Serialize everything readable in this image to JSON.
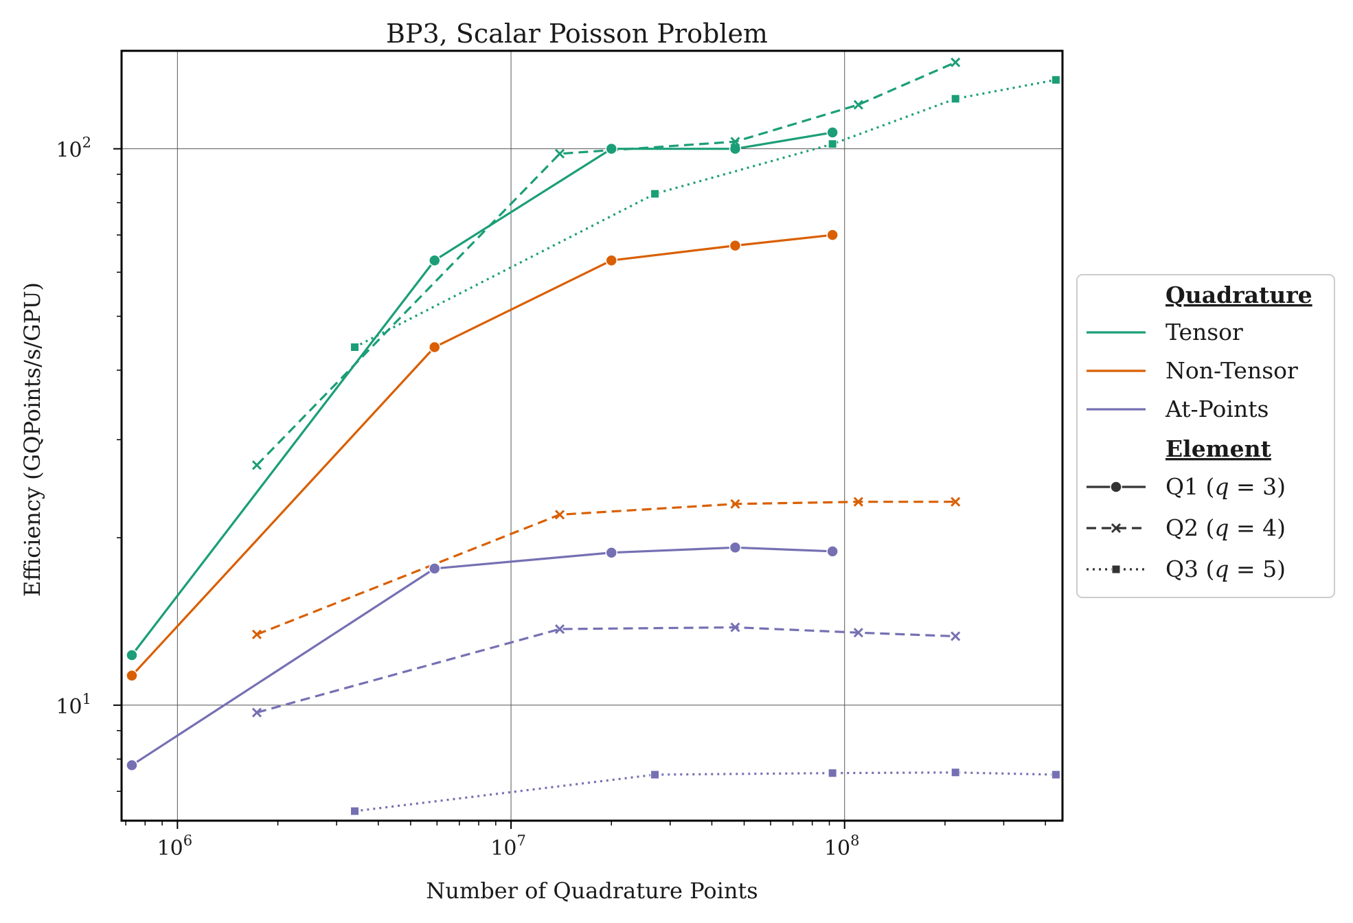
{
  "chart_data": {
    "type": "line",
    "title": "BP3, Scalar Poisson Problem",
    "xlabel": "Number of Quadrature Points",
    "ylabel": "Efficiency (GQPoints/s/GPU)",
    "xscale": "log",
    "yscale": "log",
    "xlim": [
      680000,
      450000000
    ],
    "ylim": [
      6.2,
      150
    ],
    "x_ticks": [
      {
        "value": 1000000,
        "base": "10",
        "exp": "6"
      },
      {
        "value": 10000000,
        "base": "10",
        "exp": "7"
      },
      {
        "value": 100000000,
        "base": "10",
        "exp": "8"
      }
    ],
    "y_ticks": [
      {
        "value": 10,
        "base": "10",
        "exp": "1"
      },
      {
        "value": 100,
        "base": "10",
        "exp": "2"
      }
    ],
    "grid": true,
    "legend_position": "outside-right",
    "legend": {
      "quadrature_title": "Quadrature",
      "quadrature": [
        {
          "label": "Tensor",
          "color": "#1b9e77"
        },
        {
          "label": "Non-Tensor",
          "color": "#d95f02"
        },
        {
          "label": "At-Points",
          "color": "#7570b3"
        }
      ],
      "element_title": "Element",
      "element": [
        {
          "label": "Q1 (",
          "var": "q",
          "eq": " = 3)",
          "dash": "solid",
          "marker": "circle"
        },
        {
          "label": "Q2 (",
          "var": "q",
          "eq": " = 4)",
          "dash": "dashed",
          "marker": "x"
        },
        {
          "label": "Q3 (",
          "var": "q",
          "eq": " = 5)",
          "dash": "dotted",
          "marker": "square"
        }
      ]
    },
    "series": [
      {
        "quadrature": "Tensor",
        "element": "Q1",
        "color": "#1b9e77",
        "dash": "solid",
        "marker": "circle",
        "x": [
          730000,
          5900000,
          20000000,
          47000000,
          92000000
        ],
        "y": [
          12.3,
          63,
          100,
          100,
          107
        ]
      },
      {
        "quadrature": "Tensor",
        "element": "Q2",
        "color": "#1b9e77",
        "dash": "dashed",
        "marker": "x",
        "x": [
          1730000,
          14000000,
          47000000,
          110000000,
          215000000
        ],
        "y": [
          27,
          98,
          103,
          120,
          143
        ]
      },
      {
        "quadrature": "Tensor",
        "element": "Q3",
        "color": "#1b9e77",
        "dash": "dotted",
        "marker": "square",
        "x": [
          3400000,
          27000000,
          92000000,
          215000000,
          430000000
        ],
        "y": [
          44,
          83,
          102,
          123,
          133
        ]
      },
      {
        "quadrature": "Non-Tensor",
        "element": "Q1",
        "color": "#d95f02",
        "dash": "solid",
        "marker": "circle",
        "x": [
          730000,
          5900000,
          20000000,
          47000000,
          92000000
        ],
        "y": [
          11.3,
          44,
          63,
          67,
          70
        ]
      },
      {
        "quadrature": "Non-Tensor",
        "element": "Q2",
        "color": "#d95f02",
        "dash": "dashed",
        "marker": "x",
        "x": [
          1730000,
          14000000,
          47000000,
          110000000,
          215000000
        ],
        "y": [
          13.4,
          22,
          23,
          23.2,
          23.2
        ]
      },
      {
        "quadrature": "At-Points",
        "element": "Q1",
        "color": "#7570b3",
        "dash": "solid",
        "marker": "circle",
        "x": [
          730000,
          5900000,
          20000000,
          47000000,
          92000000
        ],
        "y": [
          7.8,
          17.6,
          18.8,
          19.2,
          18.9
        ]
      },
      {
        "quadrature": "At-Points",
        "element": "Q2",
        "color": "#7570b3",
        "dash": "dashed",
        "marker": "x",
        "x": [
          1730000,
          14000000,
          47000000,
          110000000,
          215000000
        ],
        "y": [
          9.7,
          13.7,
          13.8,
          13.5,
          13.3
        ]
      },
      {
        "quadrature": "At-Points",
        "element": "Q3",
        "color": "#7570b3",
        "dash": "dotted",
        "marker": "square",
        "x": [
          3400000,
          27000000,
          92000000,
          215000000,
          430000000
        ],
        "y": [
          6.45,
          7.5,
          7.55,
          7.57,
          7.5
        ]
      }
    ]
  }
}
